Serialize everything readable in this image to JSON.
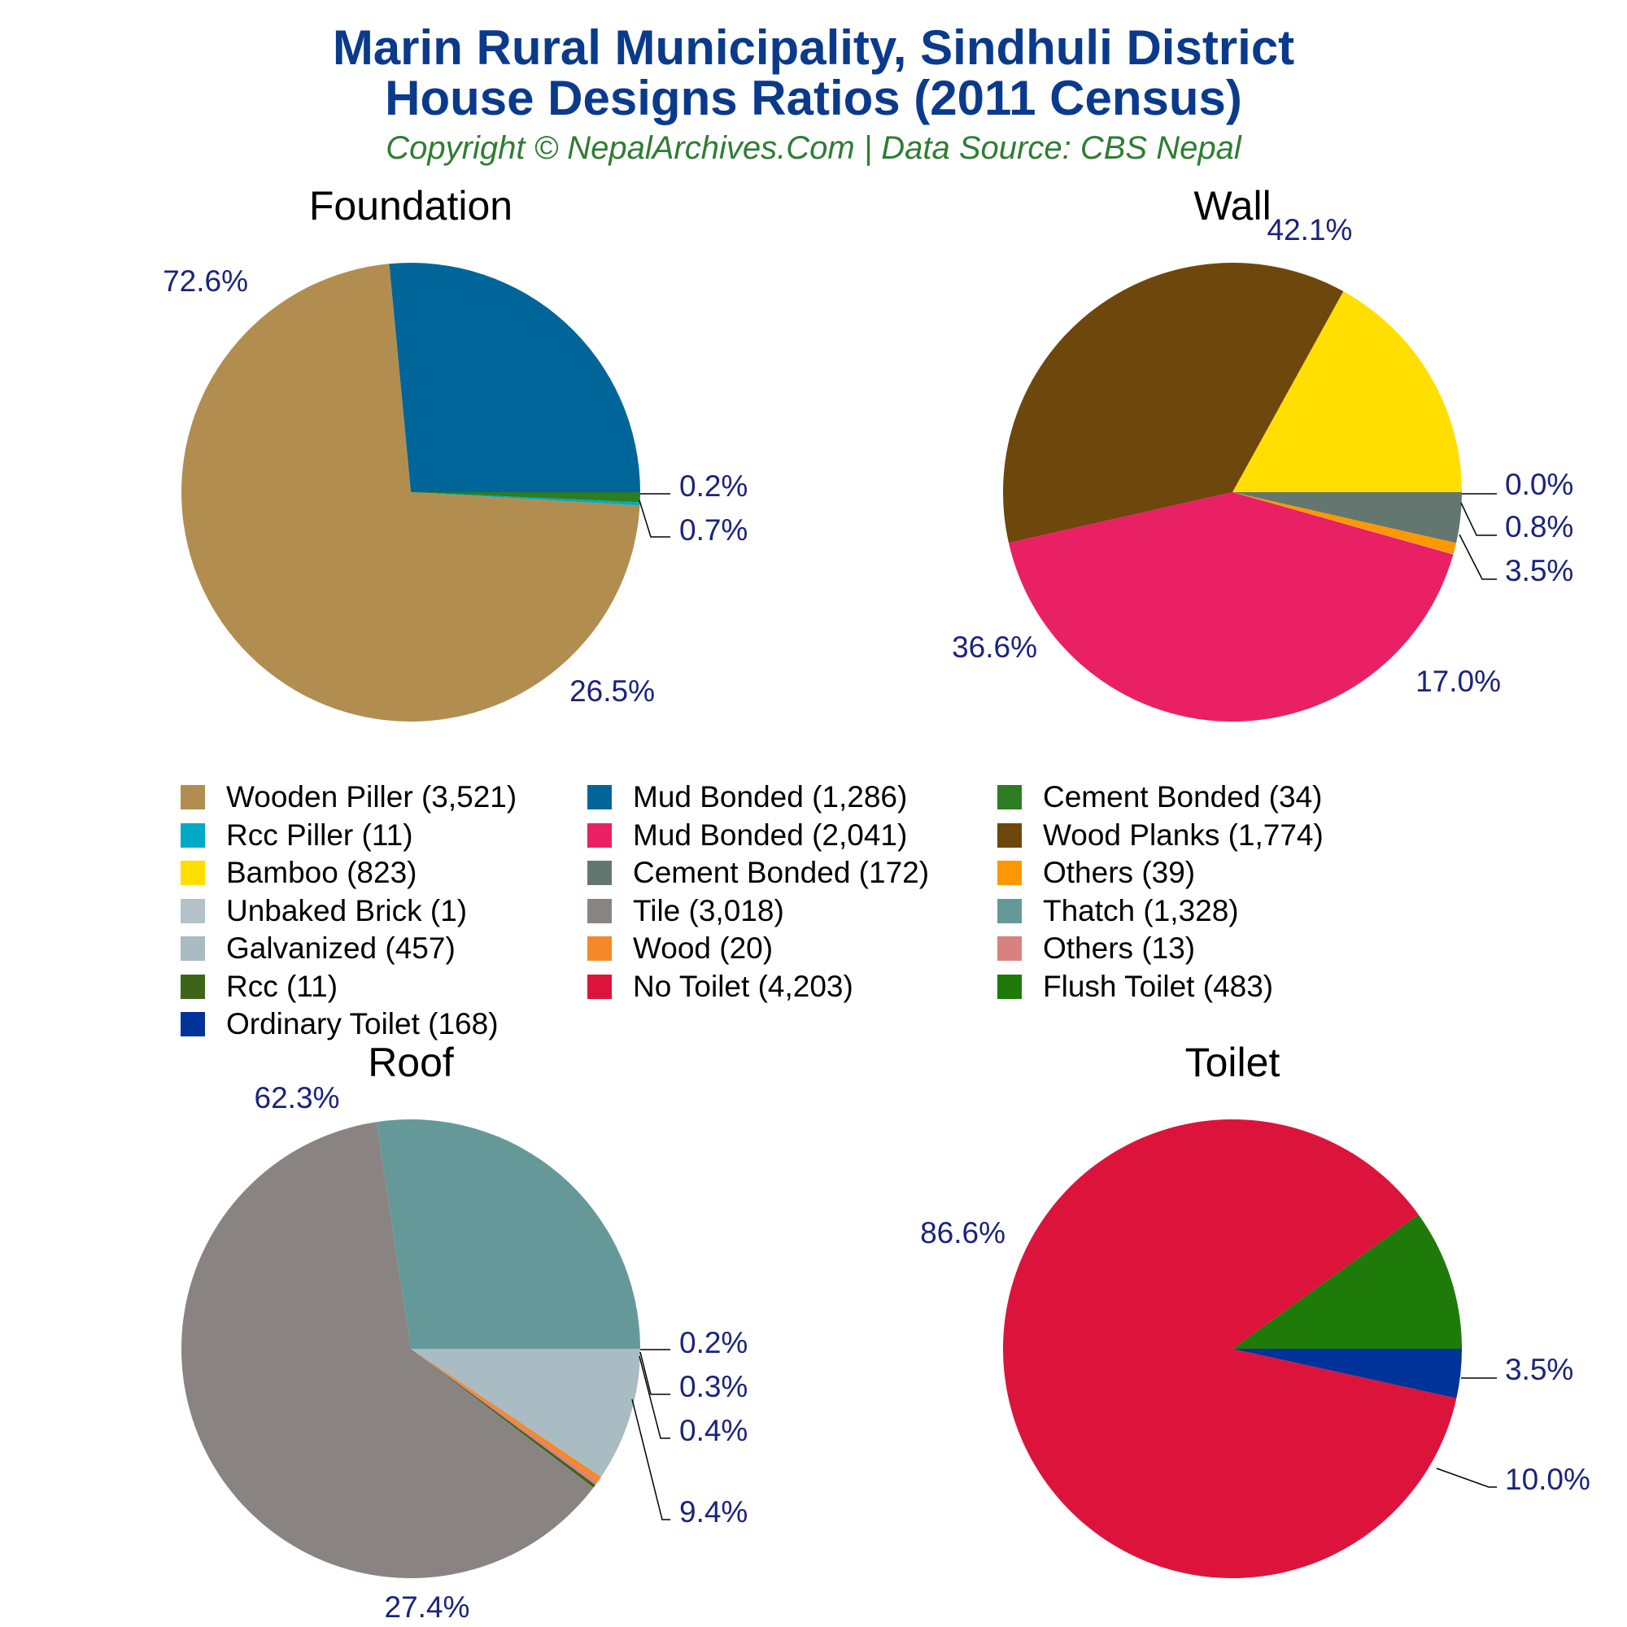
{
  "title_line1": "Marin Rural Municipality, Sindhuli District",
  "title_line2": "House Designs Ratios (2011 Census)",
  "subtitle": "Copyright © NepalArchives.Com | Data Source: CBS Nepal",
  "legend": [
    {
      "label": "Wooden Piller (3,521)",
      "color": "#b28d50"
    },
    {
      "label": "Mud Bonded (1,286)",
      "color": "#006699"
    },
    {
      "label": "Cement Bonded (34)",
      "color": "#2e7d22"
    },
    {
      "label": "Rcc Piller (11)",
      "color": "#00aac4"
    },
    {
      "label": "Mud Bonded (2,041)",
      "color": "#e92063"
    },
    {
      "label": "Wood Planks (1,774)",
      "color": "#6e470c"
    },
    {
      "label": "Bamboo (823)",
      "color": "#ffde00"
    },
    {
      "label": "Cement Bonded (172)",
      "color": "#637770"
    },
    {
      "label": "Others (39)",
      "color": "#ff9800"
    },
    {
      "label": "Unbaked Brick (1)",
      "color": "#b3c2c8"
    },
    {
      "label": "Tile (3,018)",
      "color": "#898482"
    },
    {
      "label": "Thatch (1,328)",
      "color": "#659999"
    },
    {
      "label": "Galvanized (457)",
      "color": "#a9bbc3"
    },
    {
      "label": "Wood (20)",
      "color": "#f5892a"
    },
    {
      "label": "Others (13)",
      "color": "#d98080"
    },
    {
      "label": "Rcc (11)",
      "color": "#3d6517"
    },
    {
      "label": "No Toilet (4,203)",
      "color": "#dc143c"
    },
    {
      "label": "Flush Toilet (483)",
      "color": "#1e7a09"
    },
    {
      "label": "Ordinary Toilet (168)",
      "color": "#003399"
    }
  ],
  "chart_data": [
    {
      "type": "pie",
      "title": "Foundation",
      "slices": [
        {
          "label": "Mud Bonded",
          "value": 1286,
          "pct_label": "26.5%",
          "color": "#006699"
        },
        {
          "label": "Wooden Piller",
          "value": 3521,
          "pct_label": "72.6%",
          "color": "#b28d50"
        },
        {
          "label": "Rcc Piller",
          "value": 11,
          "pct_label": "0.2%",
          "color": "#00aac4"
        },
        {
          "label": "Cement Bonded",
          "value": 34,
          "pct_label": "0.7%",
          "color": "#2e7d22"
        }
      ]
    },
    {
      "type": "pie",
      "title": "Wall",
      "slices": [
        {
          "label": "Bamboo",
          "value": 823,
          "pct_label": "17.0%",
          "color": "#ffde00"
        },
        {
          "label": "Wood Planks",
          "value": 1774,
          "pct_label": "36.6%",
          "color": "#6e470c"
        },
        {
          "label": "Mud Bonded",
          "value": 2041,
          "pct_label": "42.1%",
          "color": "#e92063"
        },
        {
          "label": "Unbaked Brick",
          "value": 1,
          "pct_label": "0.0%",
          "color": "#b3c2c8"
        },
        {
          "label": "Others",
          "value": 39,
          "pct_label": "0.8%",
          "color": "#ff9800"
        },
        {
          "label": "Cement Bonded",
          "value": 172,
          "pct_label": "3.5%",
          "color": "#637770"
        }
      ]
    },
    {
      "type": "pie",
      "title": "Roof",
      "slices": [
        {
          "label": "Thatch",
          "value": 1328,
          "pct_label": "27.4%",
          "color": "#659999"
        },
        {
          "label": "Tile",
          "value": 3018,
          "pct_label": "62.3%",
          "color": "#898482"
        },
        {
          "label": "Rcc",
          "value": 11,
          "pct_label": "0.2%",
          "color": "#3d6517"
        },
        {
          "label": "Others",
          "value": 13,
          "pct_label": "0.3%",
          "color": "#d98080"
        },
        {
          "label": "Wood",
          "value": 20,
          "pct_label": "0.4%",
          "color": "#f5892a"
        },
        {
          "label": "Galvanized",
          "value": 457,
          "pct_label": "9.4%",
          "color": "#a9bbc3"
        }
      ]
    },
    {
      "type": "pie",
      "title": "Toilet",
      "slices": [
        {
          "label": "Flush Toilet",
          "value": 483,
          "pct_label": "10.0%",
          "color": "#1e7a09"
        },
        {
          "label": "No Toilet",
          "value": 4203,
          "pct_label": "86.6%",
          "color": "#dc143c"
        },
        {
          "label": "Ordinary Toilet",
          "value": 168,
          "pct_label": "3.5%",
          "color": "#003399"
        }
      ]
    }
  ]
}
